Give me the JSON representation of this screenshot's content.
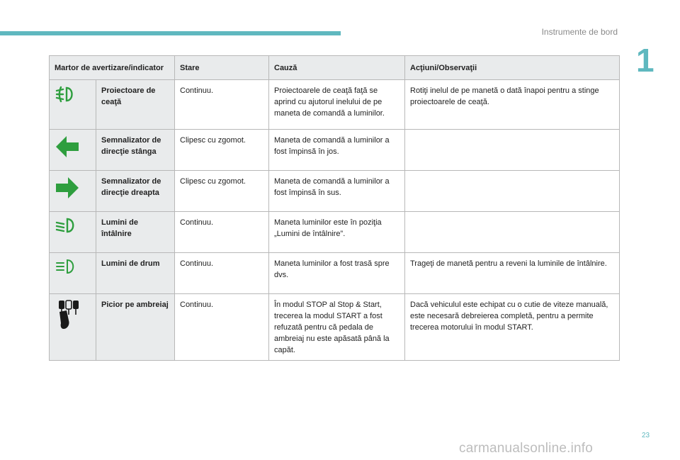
{
  "header": {
    "section_title": "Instrumente de bord",
    "chapter_number": "1"
  },
  "footer": {
    "page_number": "23",
    "watermark": "carmanualsonline.info"
  },
  "colors": {
    "accent": "#5fb8bf",
    "icon_green": "#2e9e3e"
  },
  "table": {
    "columns": [
      "Martor de avertizare/indicator",
      "Stare",
      "Cauză",
      "Acţiuni/Observaţii"
    ],
    "rows": [
      {
        "icon": "front-fog-lamp-icon",
        "name": "Proiectoare de ceaţă",
        "state": "Continuu.",
        "cause": "Proiectoarele de ceaţă faţă se aprind cu ajutorul inelului de pe maneta de comandă a luminilor.",
        "action": "Rotiţi inelul de pe manetă o dată înapoi pentru a stinge proiectoarele de ceaţă."
      },
      {
        "icon": "left-turn-signal-icon",
        "name": "Semnalizator de direcţie stânga",
        "state": "Clipesc cu zgomot.",
        "cause": "Maneta de comandă a luminilor a fost împinsă în jos.",
        "action": ""
      },
      {
        "icon": "right-turn-signal-icon",
        "name": "Semnalizator de direcţie dreapta",
        "state": "Clipesc cu zgomot.",
        "cause": "Maneta de comandă a luminilor a fost împinsă în sus.",
        "action": ""
      },
      {
        "icon": "dipped-beam-icon",
        "name": "Lumini de întâlnire",
        "state": "Continuu.",
        "cause": "Maneta luminilor este în poziţia „Lumini de întâlnire”.",
        "action": ""
      },
      {
        "icon": "main-beam-icon",
        "name": "Lumini de drum",
        "state": "Continuu.",
        "cause": "Maneta luminilor a fost trasă spre dvs.",
        "action": "Trageţi de manetă pentru a reveni la luminile de întâlnire."
      },
      {
        "icon": "foot-on-clutch-icon",
        "name": "Picior pe ambreiaj",
        "state": "Continuu.",
        "cause": "În modul STOP al Stop & Start, trecerea la modul START a fost refuzată pentru că pedala de ambreiaj nu este apăsată până la capăt.",
        "action": "Dacă vehiculul este echipat cu o cutie de viteze manuală, este necesară debreierea completă, pentru a permite trecerea motorului în modul START."
      }
    ]
  }
}
